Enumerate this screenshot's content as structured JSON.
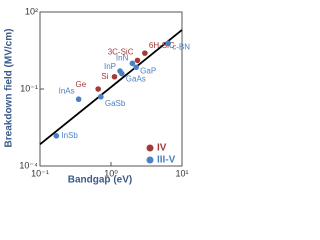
{
  "chart_data": {
    "type": "scatter",
    "x_label": "Bandgap (eV)",
    "y_label": "Breakdown field (MV/cm)",
    "xlim": [
      0.1,
      10
    ],
    "ylim": [
      0.0001,
      100
    ],
    "log_x": true,
    "log_y": true,
    "grid": false,
    "xticks": [
      {
        "value": 0.1,
        "label": "10⁻¹"
      },
      {
        "value": 1,
        "label": "10⁰"
      },
      {
        "value": 10,
        "label": "10¹"
      }
    ],
    "yticks": [
      {
        "value": 0.0001,
        "label": "10⁻⁴"
      },
      {
        "value": 0.1,
        "label": "10⁻¹"
      },
      {
        "value": 100,
        "label": "10²"
      }
    ],
    "legend": "lower right",
    "series": [
      {
        "name": "IV",
        "color": "#a33a3a",
        "x": [
          0.66,
          1.12,
          2.36,
          3.0
        ],
        "values": [
          0.1,
          0.3,
          1.3,
          2.5
        ],
        "labels": [
          "Ge",
          "Si",
          "3C-SiC",
          "6H-SiC"
        ]
      },
      {
        "name": "III-V",
        "color": "#4a80c4",
        "x": [
          0.17,
          0.35,
          0.72,
          1.42,
          1.34,
          2.26,
          2.0,
          6.4
        ],
        "values": [
          0.0015,
          0.04,
          0.05,
          0.4,
          0.5,
          0.7,
          1.0,
          6
        ],
        "labels": [
          "InSb",
          "InAs",
          "GaSb",
          "GaAs",
          "InP",
          "GaP",
          "InN",
          "c-BN"
        ]
      }
    ],
    "fit_line": {
      "color": "#000000",
      "x": [
        0.1,
        10
      ],
      "values": [
        0.0007,
        20
      ]
    }
  }
}
